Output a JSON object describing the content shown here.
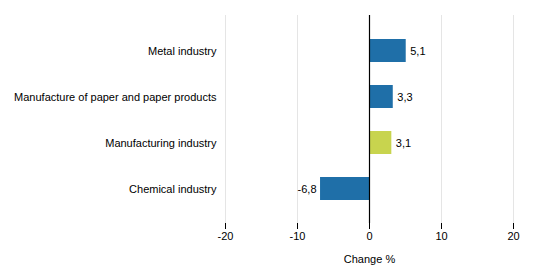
{
  "chart_data": {
    "type": "bar",
    "orientation": "horizontal",
    "categories": [
      "Metal industry",
      "Manufacture of paper and paper products",
      "Manufacturing industry",
      "Chemical industry"
    ],
    "values": [
      5.1,
      3.3,
      3.1,
      -6.8
    ],
    "value_labels": [
      "5,1",
      "3,3",
      "3,1",
      "-6,8"
    ],
    "colors": [
      "#1f6fa8",
      "#1f6fa8",
      "#c8d44e",
      "#1f6fa8"
    ],
    "data_labels": true,
    "xlabel": "Change %",
    "xlim": [
      -20,
      20
    ],
    "xticks": [
      -20,
      -10,
      0,
      10,
      20
    ],
    "grid": true
  }
}
